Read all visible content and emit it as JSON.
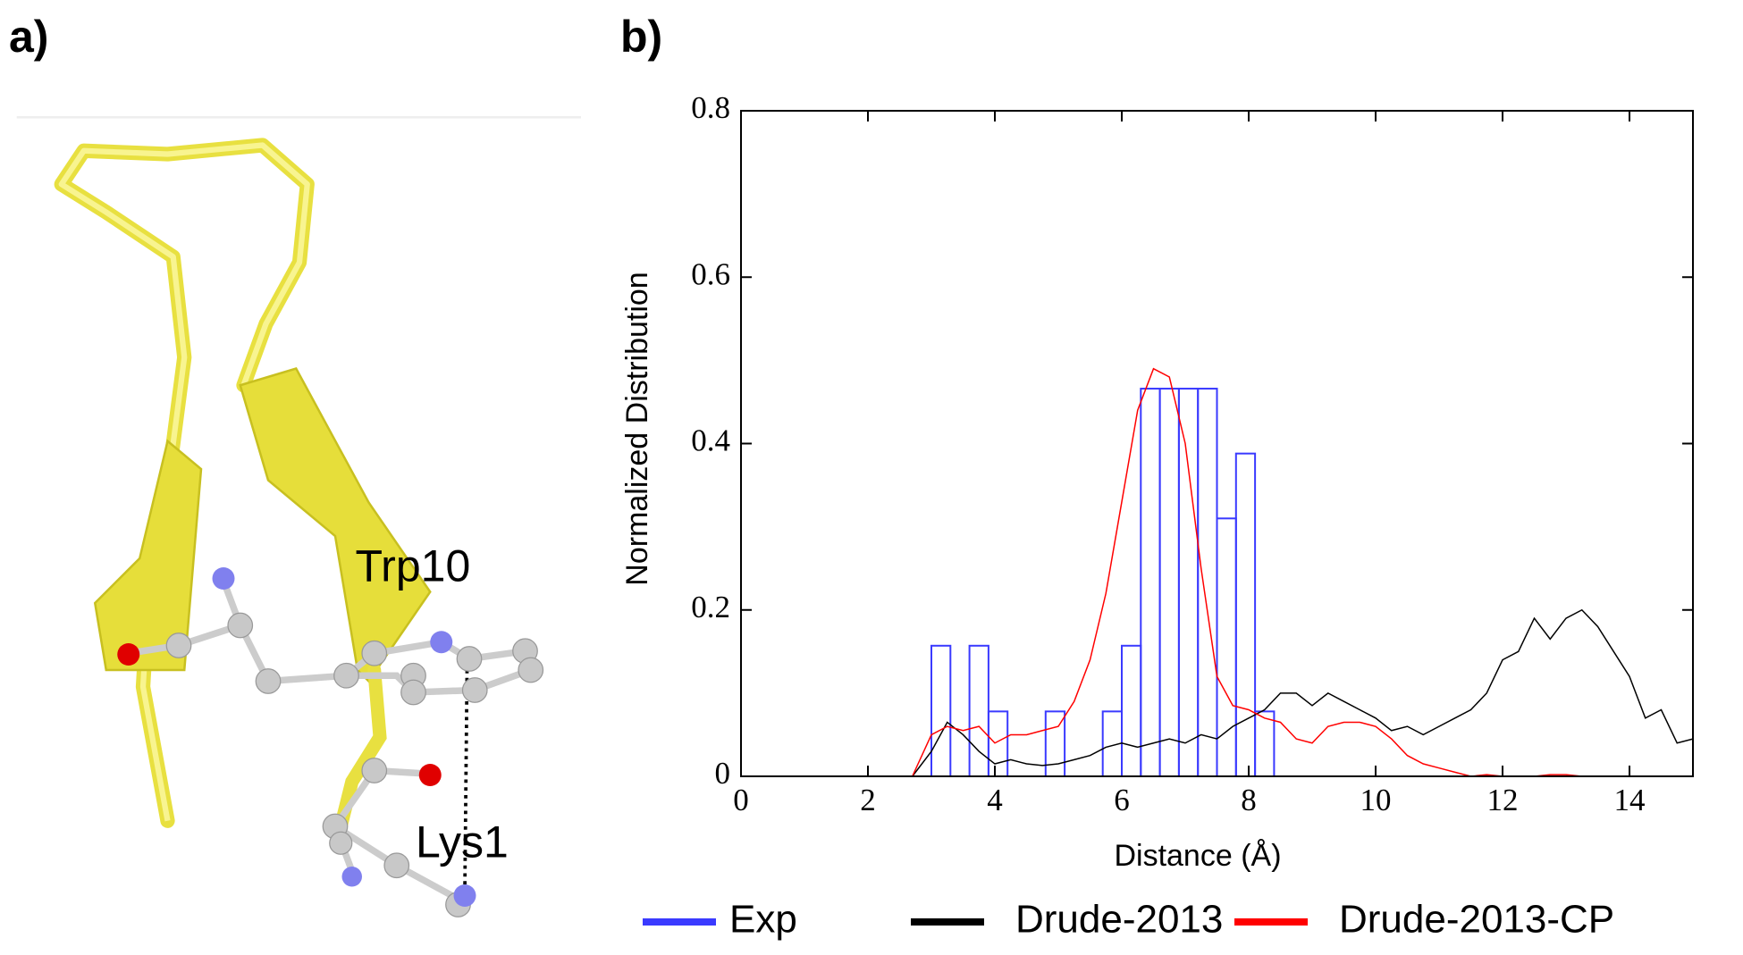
{
  "panel_a": {
    "label": "a)",
    "annotations": [
      "Trp10",
      "Lys1"
    ]
  },
  "chart_data": {
    "type": "histogram",
    "panel_label": "b)",
    "xlabel": "Distance (Å)",
    "ylabel": "Normalized Distribution",
    "xlim": [
      0,
      15
    ],
    "ylim": [
      0,
      0.8
    ],
    "xticks": [
      0,
      2,
      4,
      6,
      8,
      10,
      12,
      14
    ],
    "yticks": [
      0,
      0.2,
      0.4,
      0.6,
      0.8
    ],
    "bins": [
      3.0,
      3.3,
      3.6,
      3.9,
      4.2,
      4.5,
      4.8,
      5.1,
      5.4,
      5.7,
      6.0,
      6.3,
      6.6,
      6.9,
      7.2,
      7.5,
      7.8,
      8.1,
      8.4
    ],
    "x": [
      2.7,
      3.0,
      3.25,
      3.5,
      3.75,
      4.0,
      4.25,
      4.5,
      4.75,
      5.0,
      5.25,
      5.5,
      5.75,
      6.0,
      6.25,
      6.5,
      6.75,
      7.0,
      7.25,
      7.5,
      7.75,
      8.0,
      8.25,
      8.5,
      8.75,
      9.0,
      9.25,
      9.5,
      9.75,
      10.0,
      10.25,
      10.5,
      10.75,
      11.0,
      11.25,
      11.5,
      11.75,
      12.0,
      12.25,
      12.5,
      12.75,
      13.0,
      13.25,
      13.5,
      13.75,
      14.0,
      14.25,
      14.5,
      14.75,
      15.0
    ],
    "series": [
      {
        "name": "Exp",
        "color": "#3a3aff",
        "values": [
          0.157,
          0,
          0.157,
          0.078,
          0,
          0,
          0.078,
          0,
          0,
          0.078,
          0.157,
          0.466,
          0.466,
          0.466,
          0.466,
          0.31,
          0.388,
          0.078
        ]
      },
      {
        "name": "Drude-2013",
        "color": "#000000",
        "values": [
          0,
          0.03,
          0.065,
          0.05,
          0.03,
          0.015,
          0.02,
          0.015,
          0.013,
          0.015,
          0.02,
          0.025,
          0.035,
          0.04,
          0.035,
          0.04,
          0.045,
          0.04,
          0.05,
          0.045,
          0.06,
          0.07,
          0.08,
          0.1,
          0.1,
          0.085,
          0.1,
          0.09,
          0.08,
          0.07,
          0.055,
          0.06,
          0.05,
          0.06,
          0.07,
          0.08,
          0.1,
          0.14,
          0.15,
          0.19,
          0.165,
          0.19,
          0.2,
          0.18,
          0.15,
          0.12,
          0.07,
          0.08,
          0.04,
          0.045
        ]
      },
      {
        "name": "Drude-2013-CP",
        "color": "#ff0000",
        "values": [
          0,
          0.05,
          0.06,
          0.055,
          0.06,
          0.04,
          0.05,
          0.05,
          0.055,
          0.06,
          0.09,
          0.14,
          0.22,
          0.33,
          0.44,
          0.49,
          0.48,
          0.4,
          0.25,
          0.12,
          0.085,
          0.08,
          0.07,
          0.065,
          0.045,
          0.04,
          0.06,
          0.065,
          0.065,
          0.06,
          0.045,
          0.025,
          0.015,
          0.01,
          0.005,
          0,
          0.002,
          0,
          0,
          0,
          0.002,
          0.002,
          0,
          0,
          0,
          0,
          0,
          null,
          null,
          null
        ]
      }
    ]
  }
}
